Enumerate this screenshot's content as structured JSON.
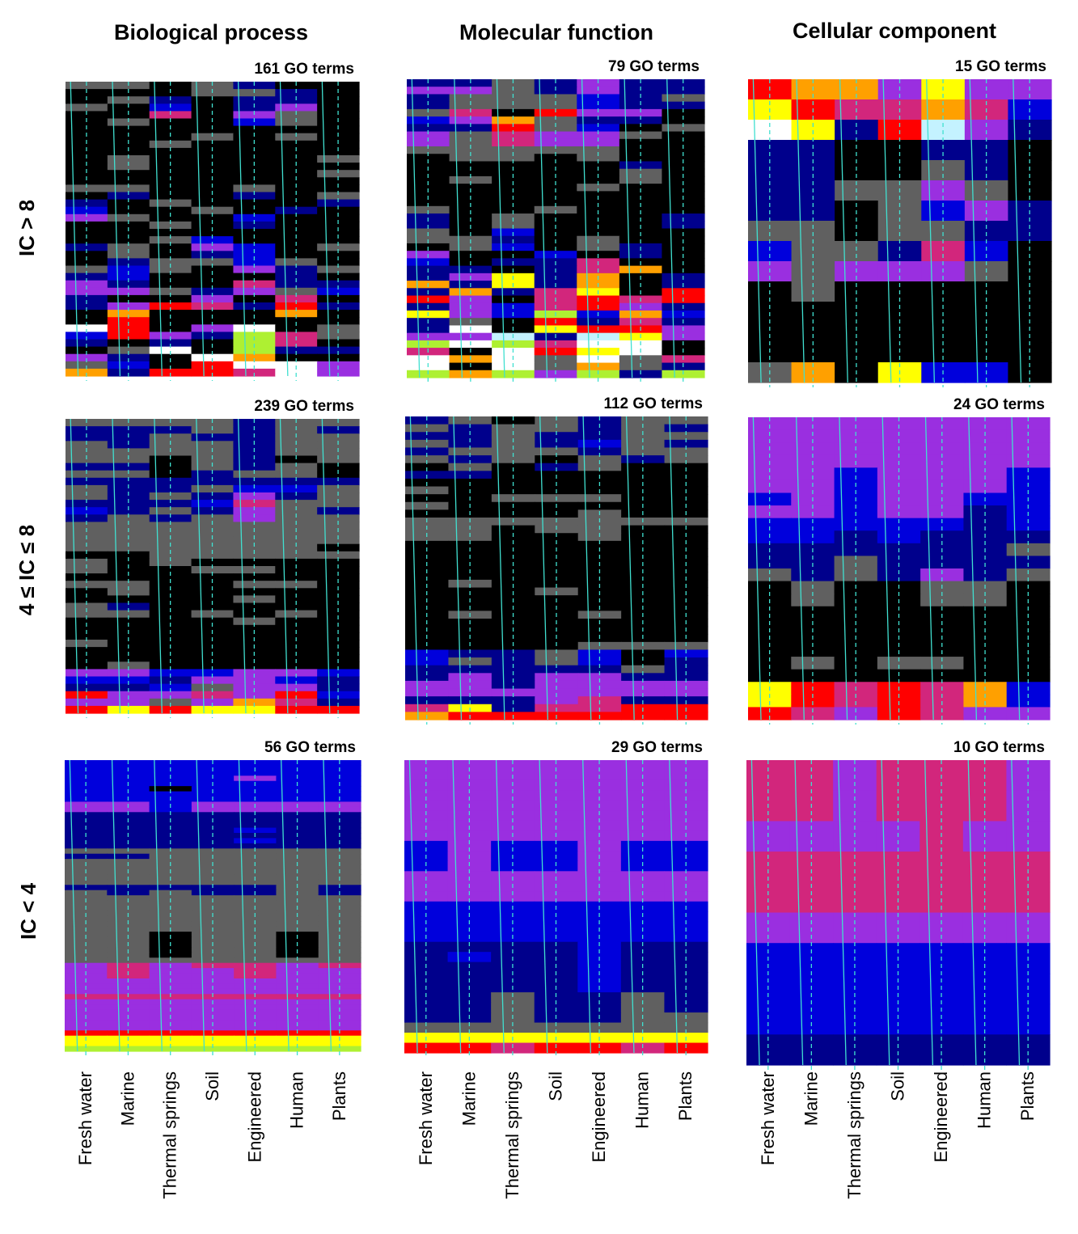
{
  "column_titles": [
    "Biological process",
    "Molecular function",
    "Cellular component"
  ],
  "row_labels": [
    "IC > 8",
    "4 ≤ IC ≤ 8",
    "IC < 4"
  ],
  "categories": [
    "Fresh water",
    "Marine",
    "Thermal springs",
    "Soil",
    "Engineered",
    "Human",
    "Plants"
  ],
  "color_key": {
    "K": "#000000",
    "G": "#606060",
    "N": "#00008c",
    "B": "#0000dc",
    "P": "#9a2fe0",
    "M": "#d2267c",
    "R": "#ff0000",
    "O": "#ffa000",
    "Y": "#ffff00",
    "W": "#ffffff",
    "C": "#c4f2ff",
    "L": "#aef032"
  },
  "overlay_line_color": "#40e0d0",
  "chart_data": [
    {
      "type": "heatmap",
      "column": "Biological process",
      "row_group": "IC > 8",
      "terms_label": "161 GO terms",
      "rows": [
        "GGKGNKK",
        "KKKGGNK",
        "KGNKNNK",
        "GKBKNPK",
        "KKMKPGK",
        "KGKKBGK",
        "KKKKKKK",
        "KKKGKGK",
        "KKGKKKK",
        "KKKKKKK",
        "KGKKKKG",
        "KGKKKKK",
        "KKKKKKG",
        "KKKKKKK",
        "GGKKGKK",
        "KNKKNKG",
        "NKGKKKN",
        "BKKGKNK",
        "PGKKBKK",
        "KKGKNKK",
        "KKKKKKK",
        "KKGBKKK",
        "NGKPBKG",
        "KGKNBKK",
        "KNGGBGK",
        "GBGKPNG",
        "NBKKKNK",
        "PNKKMNN",
        "PPGNPGB",
        "NKKPKMK",
        "NPRMNRN",
        "KOKKKOK",
        "KRKKKKK",
        "WRKPWKG",
        "BRPNLMG",
        "NKNKLMK",
        "KGWKLNN",
        "PNKWOKK",
        "GBKRWWP",
        "ONRRMWP"
      ]
    },
    {
      "type": "heatmap",
      "column": "Molecular function",
      "row_group": "IC > 8",
      "terms_label": "79 GO terms",
      "rows": [
        "NNGNPNN",
        "PPGNPNN",
        "NGGGBNG",
        "NGGGBNN",
        "GMKRPPK",
        "BPOGNNK",
        "NNRGBKG",
        "PGMPPGK",
        "PGMPPKK",
        "GGGGGKK",
        "KGGKGKK",
        "KKKKKNK",
        "KKKKKGK",
        "KGKKKGK",
        "KKKKGKK",
        "KKKKKKK",
        "KKKKKKK",
        "GKKGKKK",
        "NKGKKKN",
        "NKGKKKN",
        "GKBKKKK",
        "GGNKGKK",
        "KGBKGNK",
        "PKKBKNK",
        "BKNNMKK",
        "NNKNMOK",
        "NPYNOKN",
        "ONYNOKN",
        "NONMYKR",
        "RPKMRMR",
        "NPBMRPN",
        "YPBLBOB",
        "NGKRNMN",
        "NWKYRRP",
        "PPCNCYP",
        "LWLMWWK",
        "MKWRYWK",
        "WOWGWGM",
        "WKWGOGN",
        "LOLPLNL"
      ]
    },
    {
      "type": "heatmap",
      "column": "Cellular component",
      "row_group": "IC > 8",
      "terms_label": "15 GO terms",
      "rows": [
        "ROOPYPP",
        "YRMMOMB",
        "WYNRCPN",
        "NNKKNNK",
        "NNKKGNK",
        "NNGGPGK",
        "NNKGBPN",
        "GGKGGNN",
        "BGGNMBK",
        "PGPPPGK",
        "KGKKKKK",
        "KKKKKKK",
        "KKKKKKK",
        "KKKKKKK",
        "GOKYBBK"
      ]
    },
    {
      "type": "heatmap",
      "column": "Biological process",
      "row_group": "4 ≤ IC ≤ 8",
      "terms_label": "239 GO terms",
      "rows": [
        "GGGGNGG",
        "NNNGNGN",
        "NNGNNGG",
        "GNGGNGG",
        "GGGGNGG",
        "GGKGNKG",
        "NNKGNGK",
        "GGKNGGK",
        "NNNNNNN",
        "GNNGBBG",
        "GNGNPNG",
        "NNNBMGG",
        "BNGNPGN",
        "NGNGPGG",
        "GGGGGGG",
        "GGGGGGG",
        "GGGGGGG",
        "GGGGGGK",
        "KKGGGGG",
        "GKGKKKK",
        "GKKGGKK",
        "KKKKKKK",
        "GGKKGGK",
        "KGKKKKK",
        "KKKKGKK",
        "GNKKKKK",
        "GGKGKGK",
        "KKKKGKK",
        "KKKKKKK",
        "KKKKKKK",
        "GKKKKKK",
        "KKKKKKK",
        "KKKKKKK",
        "KGKKKKK",
        "PPBBPPB",
        "BBNPPBN",
        "NNBGPPN",
        "RPPMPRB",
        "PPGPOMN",
        "RYRYYRR"
      ]
    },
    {
      "type": "heatmap",
      "column": "Molecular function",
      "row_group": "4 ≤ IC ≤ 8",
      "terms_label": "112 GO terms",
      "rows": [
        "NGKGNGG",
        "GNGGNGN",
        "NNGNNGG",
        "GNGNBGN",
        "NGGGNGG",
        "GNGKGNG",
        "KGKNGKK",
        "NNKKKKK",
        "KKKKKKK",
        "GKKKKKK",
        "KKGGGKK",
        "GKKKKKK",
        "KKKKGKK",
        "GGGGGGG",
        "GGKGGKK",
        "GGKKGKK",
        "KKKKKKK",
        "KKKKKKK",
        "KKKKKKK",
        "KKKKKKK",
        "KKKKKKK",
        "KGKKKKK",
        "KKKGKKK",
        "KKKKKKK",
        "KKKKKKK",
        "KGKKGKK",
        "KKKKKKK",
        "KKKKKKK",
        "KKKKKKK",
        "KKKKGGG",
        "BNNGBKB",
        "BGNGBKN",
        "NNNNNGN",
        "NPNPPNN",
        "PPNPPPP",
        "PPPPPPP",
        "NNNPMNN",
        "MYNMMRR",
        "ORRRRRR"
      ]
    },
    {
      "type": "heatmap",
      "column": "Cellular component",
      "row_group": "4 ≤ IC ≤ 8",
      "terms_label": "24 GO terms",
      "rows": [
        "PPPPPPP",
        "PPPPPPP",
        "PPPPPPP",
        "PPPPPPP",
        "PPBPPPB",
        "PPBPPPB",
        "BPBPPBB",
        "PPBPPNB",
        "BBBBBNB",
        "BBNBNNN",
        "NNNNNNG",
        "NNGNNNN",
        "GNGNPNG",
        "KGKKGGK",
        "KGKKGGK",
        "KKKKKKK",
        "KKKKKKK",
        "KKKKKKK",
        "KKKKKKK",
        "KGKGGKK",
        "KKKKKKK",
        "YRMRMOB",
        "YRMRMOB",
        "RMPRMPP"
      ]
    },
    {
      "type": "heatmap",
      "column": "Biological process",
      "row_group": "IC < 4",
      "terms_label": "56 GO terms",
      "rows": [
        "BBBBBBB",
        "BBBBBBB",
        "BBBBBBB",
        "BBBBPBB",
        "BBBBBBB",
        "BBKBBBB",
        "BBBBBBB",
        "BBBBBBB",
        "PPBPPPP",
        "PPBPPPP",
        "NNNNNNN",
        "NNNNNNN",
        "NNNNNNN",
        "NNNNBNN",
        "NNNNNNN",
        "NNNNBNN",
        "NNNNNNN",
        "GGGGGGG",
        "NNGGGGG",
        "GGGGGGG",
        "GGGGGGG",
        "GGGGGGG",
        "GGGGGGG",
        "GGGGGGG",
        "NNNNNGN",
        "GNGNNGN",
        "GGGGGGG",
        "GGGGGGG",
        "GGGGGGG",
        "GGGGGGG",
        "GGGGGGG",
        "GGGGGGG",
        "GGGGGGG",
        "GGKGGKG",
        "GGKGGKG",
        "GGKGGKG",
        "GGKGGKG",
        "GGKGGKG",
        "GGGGGGG",
        "PMPMMPM",
        "PMPPMPP",
        "PMPPMPP",
        "PPPPPPP",
        "PPPPPPP",
        "PPPPPPP",
        "MMMMMMM",
        "PPPPPPP",
        "PPPPPPP",
        "PPPPPPP",
        "PPPPPPP",
        "PPPPPPP",
        "PPPPPPP",
        "RRRRRRR",
        "YYYYYYY",
        "YYYYYYY",
        "LLLLLLL"
      ]
    },
    {
      "type": "heatmap",
      "column": "Molecular function",
      "row_group": "IC < 4",
      "terms_label": "29 GO terms",
      "rows": [
        "PPPPPPP",
        "PPPPPPP",
        "PPPPPPP",
        "PPPPPPP",
        "PPPPPPP",
        "PPPPPPP",
        "PPPPPPP",
        "PPPPPPP",
        "BPBBPBB",
        "BPBBPBB",
        "BPBBPBB",
        "PPPPPPP",
        "PPPPPPP",
        "PPPPPPP",
        "BBBBBBB",
        "BBBBBBB",
        "BBBBBBB",
        "BBBBBBB",
        "NNNNBNN",
        "NBNNBNN",
        "NNNNBNN",
        "NNNNBNN",
        "NNNNBNN",
        "NNGNNGN",
        "NNGNNGN",
        "NNGNNGG",
        "GGGGGGG",
        "YYYYYYY",
        "RRMRRMR"
      ]
    },
    {
      "type": "heatmap",
      "column": "Cellular component",
      "row_group": "IC < 4",
      "terms_label": "10 GO terms",
      "rows": [
        "MMPMMMP",
        "MMPMMMP",
        "PPPPMPP",
        "MMMMMMM",
        "MMMMMMM",
        "PPPPPPP",
        "BBBBBBB",
        "BBBBBBB",
        "BBBBBBB",
        "NNNNNNN"
      ]
    }
  ]
}
